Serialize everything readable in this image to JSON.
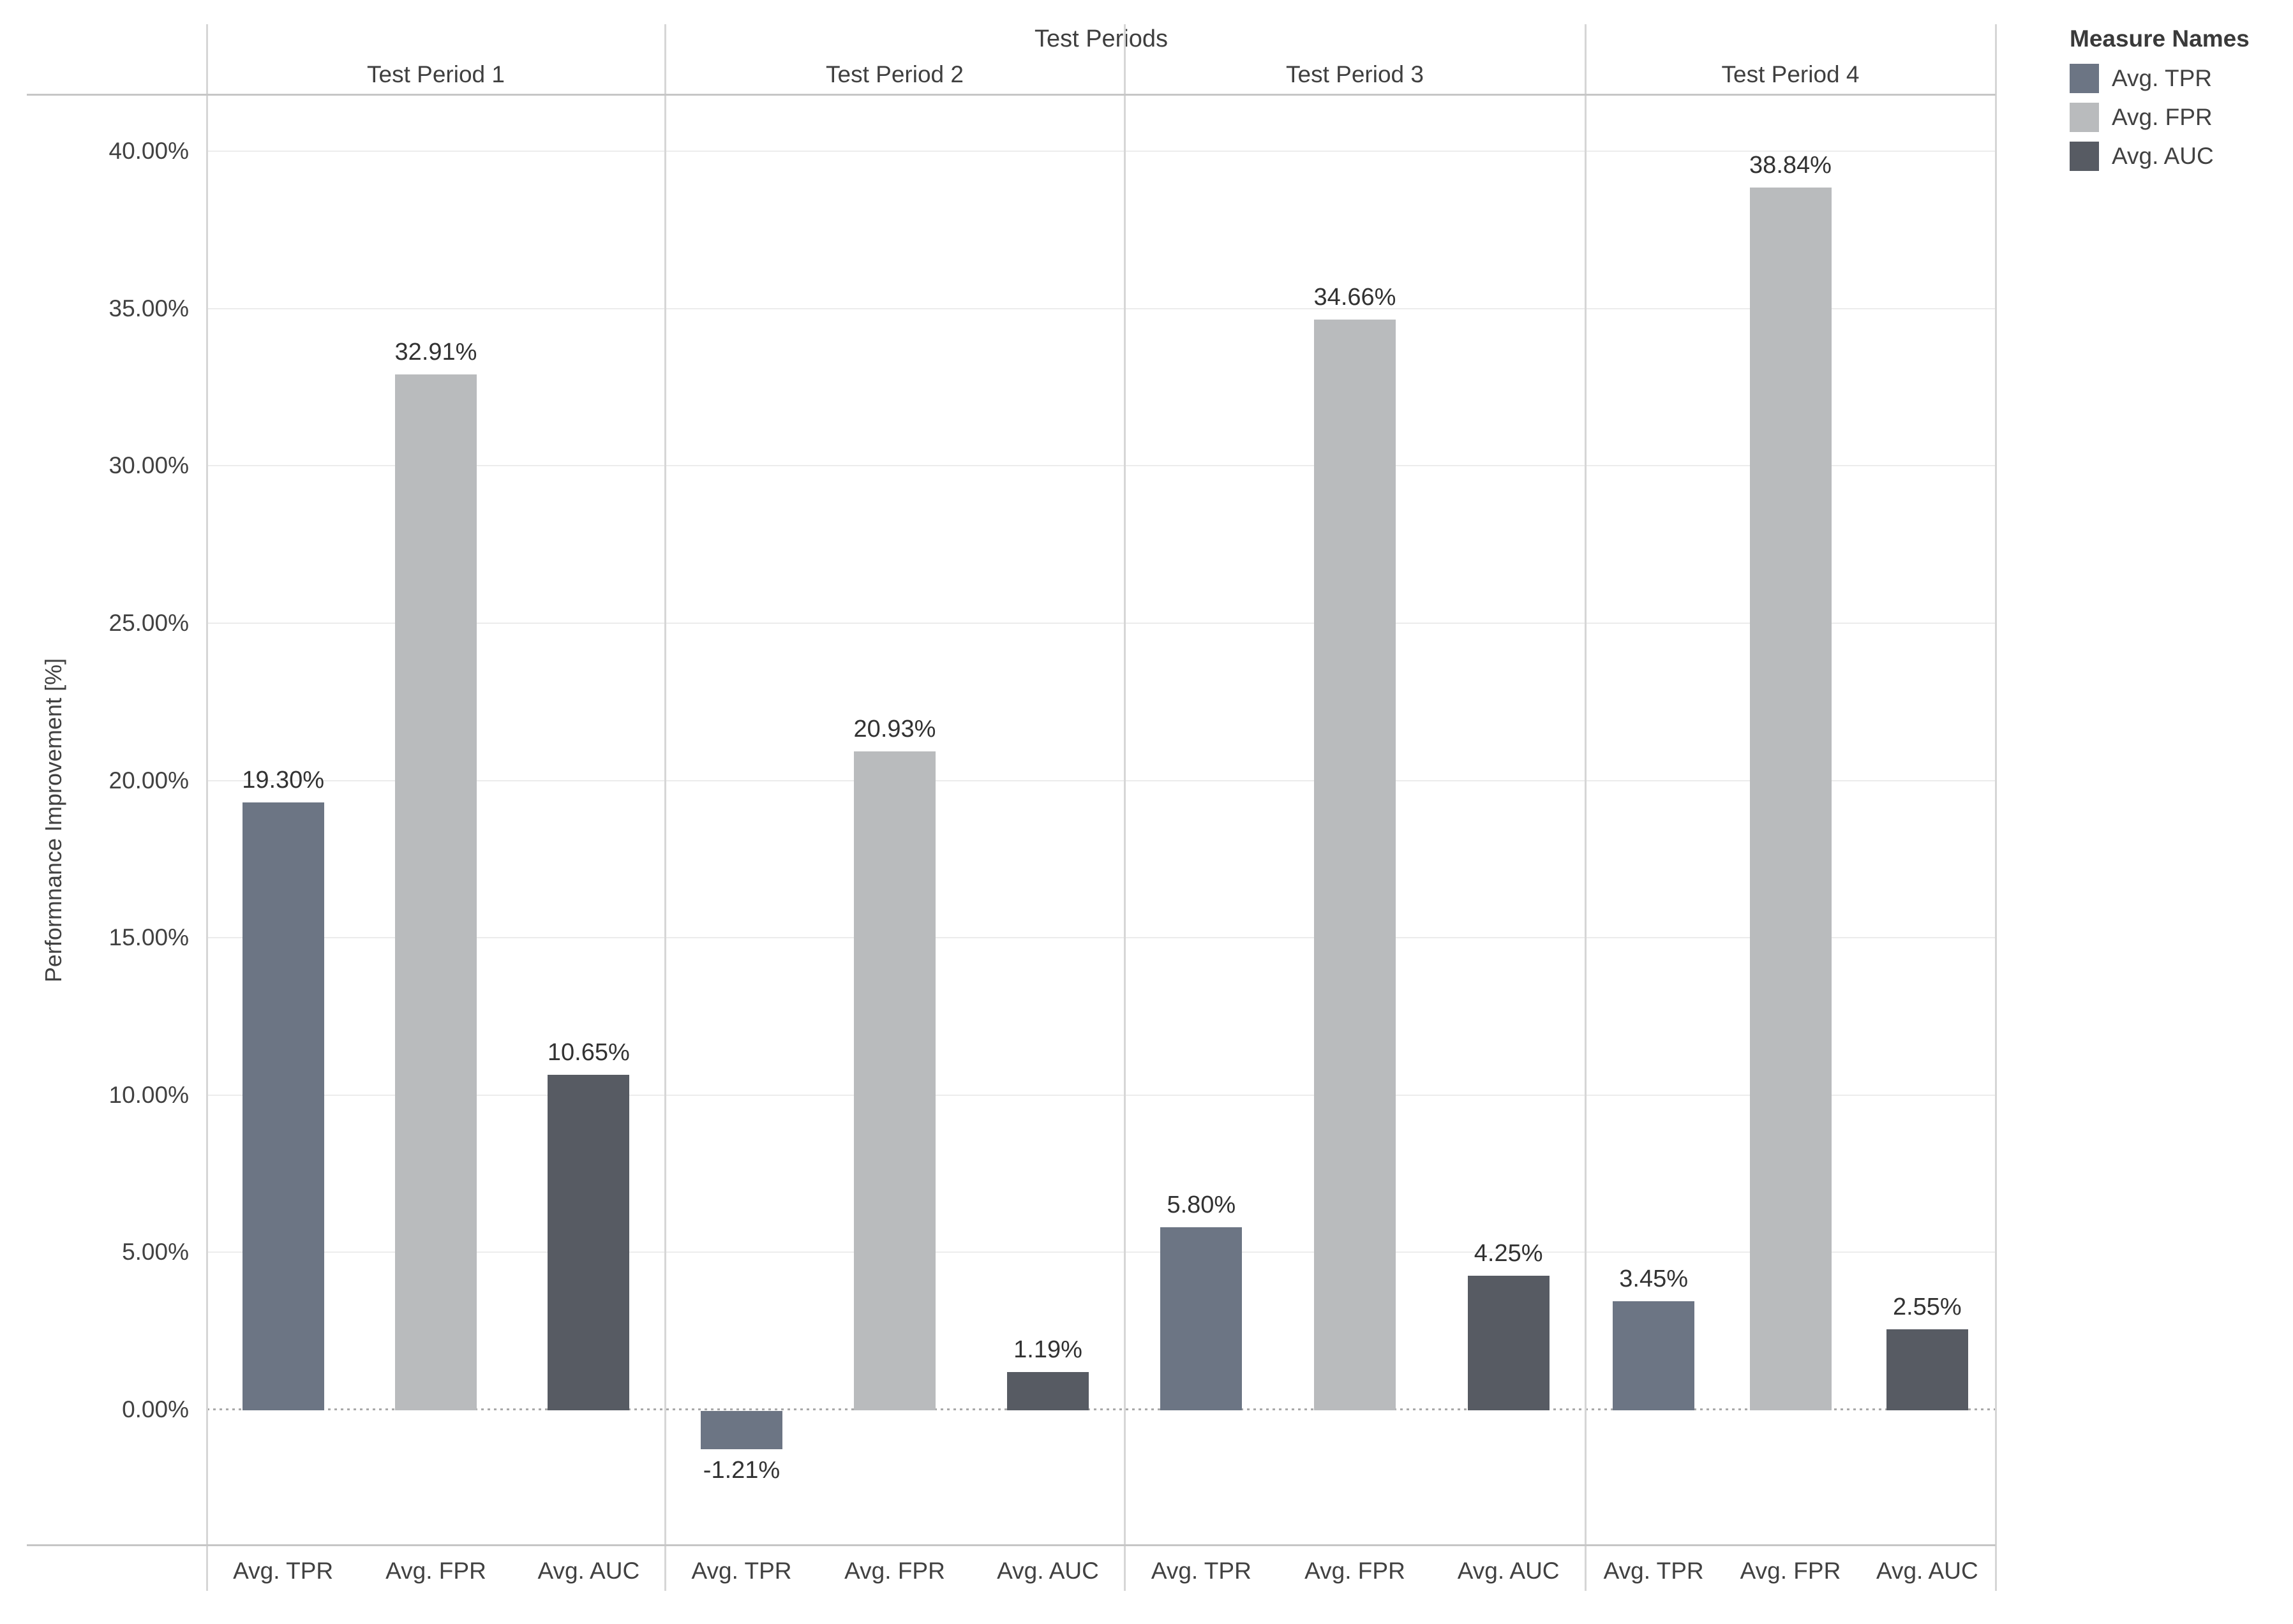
{
  "chart_data": {
    "type": "bar",
    "title": "Test Periods",
    "ylabel": "Performnance Improvement [%]",
    "ylim": [
      -4.3,
      41.8
    ],
    "ytick_step_pct": 5,
    "ytick_labels": [
      "0.00%",
      "5.00%",
      "10.00%",
      "15.00%",
      "20.00%",
      "25.00%",
      "30.00%",
      "35.00%",
      "40.00%"
    ],
    "grid": "horizontal light gridlines every 5%, dotted line at 0%",
    "legend_position": "top-right",
    "categories": [
      "Avg. TPR",
      "Avg. FPR",
      "Avg. AUC"
    ],
    "panels": [
      {
        "name": "Test Period 1",
        "values": [
          19.3,
          32.91,
          10.65
        ],
        "labels": [
          "19.30%",
          "32.91%",
          "10.65%"
        ]
      },
      {
        "name": "Test Period 2",
        "values": [
          -1.21,
          20.93,
          1.19
        ],
        "labels": [
          "-1.21%",
          "20.93%",
          "1.19%"
        ]
      },
      {
        "name": "Test Period 3",
        "values": [
          5.8,
          34.66,
          4.25
        ],
        "labels": [
          "5.80%",
          "34.66%",
          "4.25%"
        ]
      },
      {
        "name": "Test Period 4",
        "values": [
          3.45,
          38.84,
          2.55
        ],
        "labels": [
          "3.45%",
          "38.84%",
          "2.55%"
        ]
      }
    ],
    "series_colors": {
      "Avg. TPR": "#6c7584",
      "Avg. FPR": "#b9bbbd",
      "Avg. AUC": "#575b63"
    }
  },
  "legend": {
    "title": "Measure Names",
    "items": [
      {
        "label": "Avg. TPR",
        "color": "#6c7584"
      },
      {
        "label": "Avg. FPR",
        "color": "#b9bbbd"
      },
      {
        "label": "Avg. AUC",
        "color": "#575b63"
      }
    ]
  }
}
